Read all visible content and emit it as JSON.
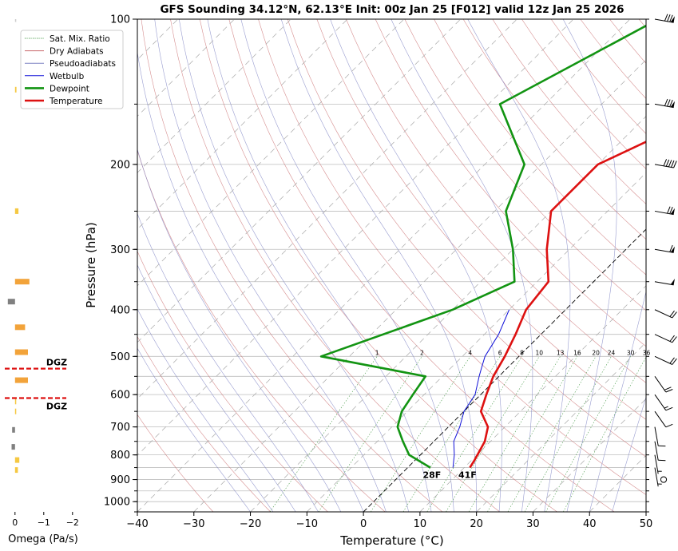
{
  "chart_data": [
    {
      "type": "line",
      "title": "GFS Sounding 34.12°N, 62.13°E Init: 00z Jan 25 [F012] valid 12z Jan 25 2026",
      "xlabel": "Temperature (°C)",
      "ylabel": "Pressure (hPa)",
      "xlim": [
        -40,
        50
      ],
      "ylim": [
        1050,
        100
      ],
      "y_scale": "log",
      "x_ticks": [
        "−40",
        "−30",
        "−20",
        "−10",
        "0",
        "10",
        "20",
        "30",
        "40",
        "50"
      ],
      "x_tick_values": [
        -40,
        -30,
        -20,
        -10,
        0,
        10,
        20,
        30,
        40,
        50
      ],
      "y_ticks": [
        "100",
        "200",
        "300",
        "400",
        "500",
        "600",
        "700",
        "800",
        "900",
        "1000"
      ],
      "y_tick_values": [
        100,
        200,
        300,
        400,
        500,
        600,
        700,
        800,
        900,
        1000
      ],
      "legend": {
        "placement": "top-left",
        "entries": [
          {
            "label": "Sat. Mix. Ratio",
            "color": "#2a8a2a",
            "style": "dotted"
          },
          {
            "label": "Dry Adiabats",
            "color": "#c8696b",
            "style": "solid"
          },
          {
            "label": "Pseudoadiabats",
            "color": "#7f84c4",
            "style": "solid"
          },
          {
            "label": "Wetbulb",
            "color": "#1010d8",
            "style": "solid"
          },
          {
            "label": "Dewpoint",
            "color": "#129412",
            "style": "solid"
          },
          {
            "label": "Temperature",
            "color": "#dd1111",
            "style": "solid"
          }
        ]
      },
      "series": [
        {
          "name": "Temperature",
          "color": "#dd1111",
          "points": [
            [
              850,
              11
            ],
            [
              820,
              10.5
            ],
            [
              750,
              9
            ],
            [
              700,
              7
            ],
            [
              650,
              3
            ],
            [
              600,
              1
            ],
            [
              550,
              -1
            ],
            [
              500,
              -2.5
            ],
            [
              450,
              -4.5
            ],
            [
              400,
              -7
            ],
            [
              350,
              -8
            ],
            [
              300,
              -14
            ],
            [
              250,
              -20
            ],
            [
              200,
              -20
            ],
            [
              150,
              -8
            ],
            [
              100,
              0
            ]
          ]
        },
        {
          "name": "Dewpoint",
          "color": "#129412",
          "points": [
            [
              850,
              4
            ],
            [
              800,
              -2
            ],
            [
              750,
              -5.5
            ],
            [
              700,
              -9
            ],
            [
              650,
              -11
            ],
            [
              600,
              -12
            ],
            [
              550,
              -13
            ],
            [
              500,
              -35
            ],
            [
              400,
              -20
            ],
            [
              350,
              -14
            ],
            [
              300,
              -20
            ],
            [
              250,
              -28
            ],
            [
              200,
              -33
            ],
            [
              150,
              -48
            ],
            [
              100,
              -35
            ]
          ]
        },
        {
          "name": "Wetbulb",
          "color": "#1010d8",
          "points": [
            [
              850,
              8
            ],
            [
              800,
              6
            ],
            [
              750,
              3.5
            ],
            [
              700,
              2
            ],
            [
              650,
              0
            ],
            [
              600,
              -1
            ],
            [
              550,
              -3.5
            ],
            [
              530,
              -4.5
            ],
            [
              500,
              -6
            ],
            [
              450,
              -7.5
            ],
            [
              400,
              -10
            ]
          ]
        }
      ],
      "mixing_ratio_labels": [
        "1",
        "2",
        "4",
        "6",
        "8",
        "10",
        "13",
        "16",
        "20",
        "24",
        "30",
        "36"
      ],
      "mixing_ratio_values": [
        1,
        2,
        4,
        6,
        8,
        10,
        13,
        16,
        20,
        24,
        30,
        36
      ],
      "surface_labels": {
        "dewpoint": "28F",
        "temperature": "41F"
      },
      "grid": true
    },
    {
      "type": "bar",
      "xlabel": "Omega (Pa/s)",
      "xlim": [
        0.3,
        -2.2
      ],
      "x_ticks": [
        "0",
        "−1",
        "−2"
      ],
      "x_tick_values": [
        0,
        -1,
        -2
      ],
      "dgz_label": "DGZ",
      "dgz_pressures": [
        530,
        610
      ],
      "bars": [
        {
          "p": 100,
          "omega": 0.0,
          "color": "#cccccc"
        },
        {
          "p": 140,
          "omega": -0.05,
          "color": "#f5c842"
        },
        {
          "p": 250,
          "omega": -0.12,
          "color": "#f5c842"
        },
        {
          "p": 350,
          "omega": -0.5,
          "color": "#f2a33a"
        },
        {
          "p": 385,
          "omega": 0.25,
          "color": "#808080"
        },
        {
          "p": 435,
          "omega": -0.35,
          "color": "#f2a33a"
        },
        {
          "p": 490,
          "omega": -0.45,
          "color": "#f2a33a"
        },
        {
          "p": 560,
          "omega": -0.45,
          "color": "#f2a33a"
        },
        {
          "p": 620,
          "omega": -0.03,
          "color": "#f5c842"
        },
        {
          "p": 650,
          "omega": -0.01,
          "color": "#f5c842"
        },
        {
          "p": 710,
          "omega": 0.1,
          "color": "#808080"
        },
        {
          "p": 770,
          "omega": 0.12,
          "color": "#808080"
        },
        {
          "p": 820,
          "omega": -0.15,
          "color": "#f5c842"
        },
        {
          "p": 860,
          "omega": -0.1,
          "color": "#f5c842"
        }
      ]
    }
  ],
  "wind_barbs": [
    {
      "p": 100,
      "flags": 1,
      "full": 3,
      "half": 0
    },
    {
      "p": 150,
      "flags": 1,
      "full": 3,
      "half": 0
    },
    {
      "p": 200,
      "flags": 0,
      "full": 5,
      "half": 0
    },
    {
      "p": 250,
      "flags": 1,
      "full": 2,
      "half": 0
    },
    {
      "p": 300,
      "flags": 1,
      "full": 1,
      "half": 0
    },
    {
      "p": 350,
      "flags": 1,
      "full": 0,
      "half": 0
    },
    {
      "p": 400,
      "flags": 0,
      "full": 2,
      "half": 0
    },
    {
      "p": 450,
      "flags": 0,
      "full": 2,
      "half": 0
    },
    {
      "p": 500,
      "flags": 0,
      "full": 2,
      "half": 0
    },
    {
      "p": 550,
      "flags": 0,
      "full": 2,
      "half": 0
    },
    {
      "p": 600,
      "flags": 0,
      "full": 1,
      "half": 1
    },
    {
      "p": 650,
      "flags": 0,
      "full": 1,
      "half": 0
    },
    {
      "p": 700,
      "flags": 0,
      "full": 1,
      "half": 0
    },
    {
      "p": 750,
      "flags": 0,
      "full": 1,
      "half": 0
    },
    {
      "p": 800,
      "flags": 0,
      "full": 0,
      "half": 1
    },
    {
      "p": 850,
      "flags": 0,
      "full": 0,
      "half": 1
    },
    {
      "p": 900,
      "flags": 0,
      "full": 0,
      "half": 0
    }
  ]
}
